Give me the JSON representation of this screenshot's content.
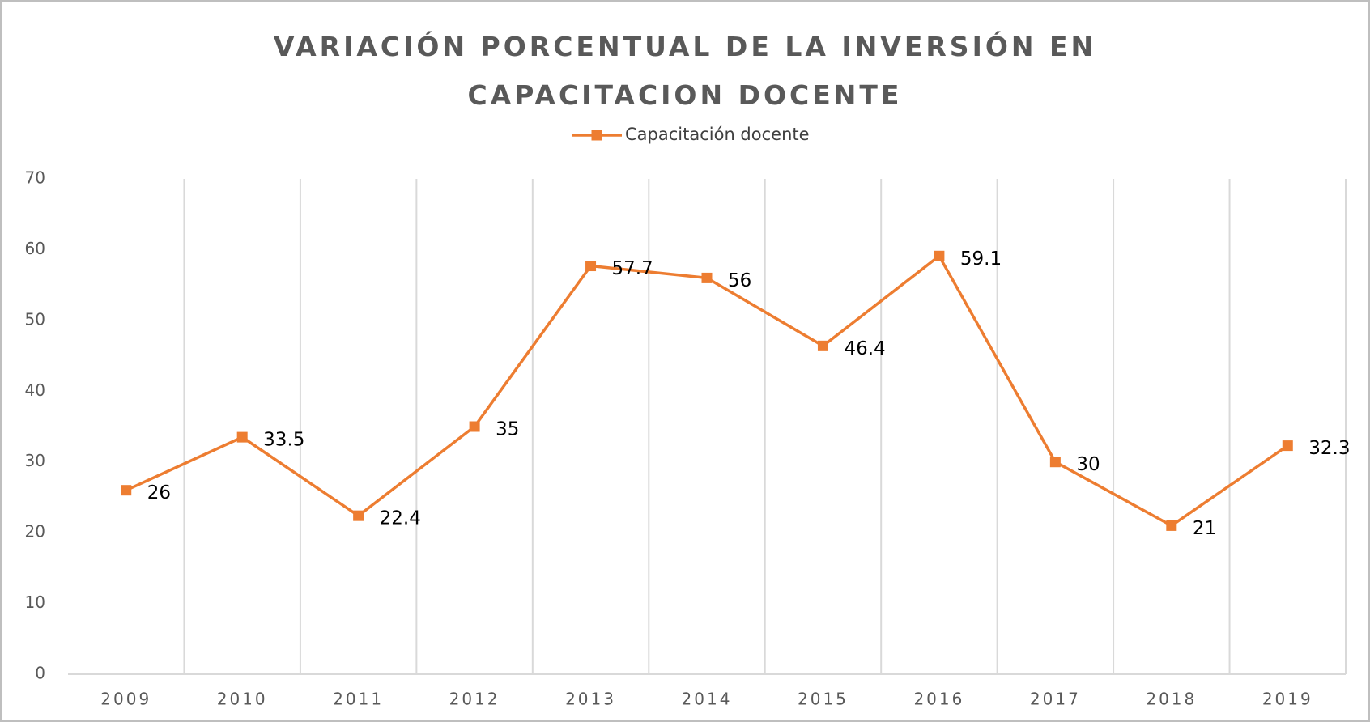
{
  "chart_data": {
    "type": "line",
    "title": "VARIACIÓN PORCENTUAL DE LA INVERSIÓN EN CAPACITACION DOCENTE",
    "categories": [
      "2009",
      "2010",
      "2011",
      "2012",
      "2013",
      "2014",
      "2015",
      "2016",
      "2017",
      "2018",
      "2019"
    ],
    "series": [
      {
        "name": "Capacitación docente",
        "color": "#ed7d31",
        "values": [
          26,
          33.5,
          22.4,
          35,
          57.7,
          56,
          46.4,
          59.1,
          30,
          21,
          32.3
        ]
      }
    ],
    "ylim": [
      0,
      70
    ],
    "yticks": [
      0,
      10,
      20,
      30,
      40,
      50,
      60,
      70
    ],
    "grid": "vertical",
    "legend": "top",
    "data_labels": true
  }
}
